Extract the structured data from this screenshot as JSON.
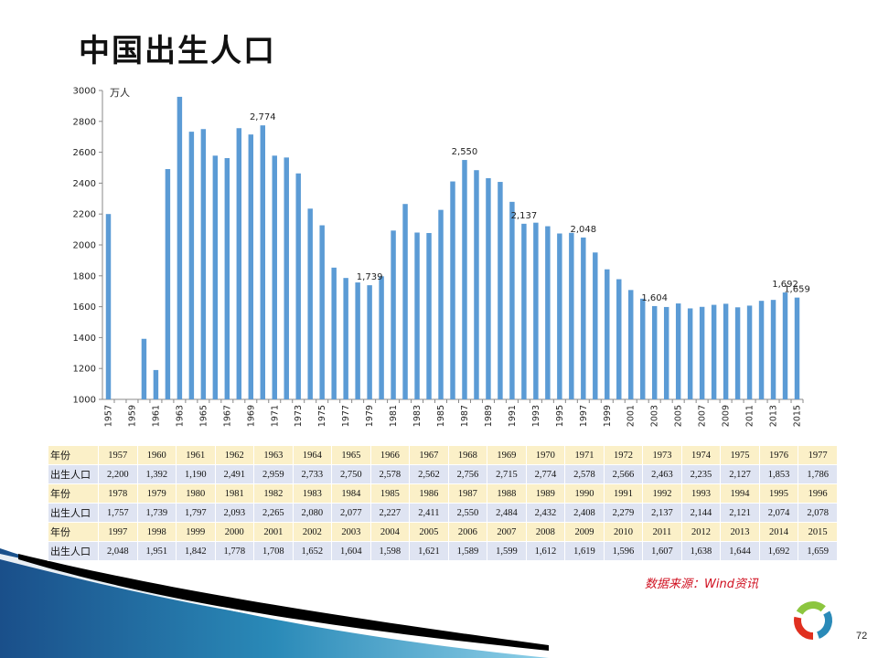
{
  "title": "中国出生人口",
  "unit_label": "万人",
  "source": "数据来源：Wind资讯",
  "page_number": "72",
  "table": {
    "year_header": "年份",
    "pop_header": "出生人口",
    "rows": [
      {
        "years": [
          "1957",
          "1960",
          "1961",
          "1962",
          "1963",
          "1964",
          "1965",
          "1966",
          "1967",
          "1968",
          "1969",
          "1970",
          "1971",
          "1972",
          "1973",
          "1974",
          "1975",
          "1976",
          "1977"
        ],
        "values": [
          "2,200",
          "1,392",
          "1,190",
          "2,491",
          "2,959",
          "2,733",
          "2,750",
          "2,578",
          "2,562",
          "2,756",
          "2,715",
          "2,774",
          "2,578",
          "2,566",
          "2,463",
          "2,235",
          "2,127",
          "1,853",
          "1,786"
        ]
      },
      {
        "years": [
          "1978",
          "1979",
          "1980",
          "1981",
          "1982",
          "1983",
          "1984",
          "1985",
          "1986",
          "1987",
          "1988",
          "1989",
          "1990",
          "1991",
          "1992",
          "1993",
          "1994",
          "1995",
          "1996"
        ],
        "values": [
          "1,757",
          "1,739",
          "1,797",
          "2,093",
          "2,265",
          "2,080",
          "2,077",
          "2,227",
          "2,411",
          "2,550",
          "2,484",
          "2,432",
          "2,408",
          "2,279",
          "2,137",
          "2,144",
          "2,121",
          "2,074",
          "2,078"
        ]
      },
      {
        "years": [
          "1997",
          "1998",
          "1999",
          "2000",
          "2001",
          "2002",
          "2003",
          "2004",
          "2005",
          "2006",
          "2007",
          "2008",
          "2009",
          "2010",
          "2011",
          "2012",
          "2013",
          "2014",
          "2015"
        ],
        "values": [
          "2,048",
          "1,951",
          "1,842",
          "1,778",
          "1,708",
          "1,652",
          "1,604",
          "1,598",
          "1,621",
          "1,589",
          "1,599",
          "1,612",
          "1,619",
          "1,596",
          "1,607",
          "1,638",
          "1,644",
          "1,692",
          "1,659"
        ]
      }
    ]
  },
  "chart_data": {
    "type": "bar",
    "ylim": [
      1000,
      3000
    ],
    "yticks": [
      1000,
      1200,
      1400,
      1600,
      1800,
      2000,
      2200,
      2400,
      2600,
      2800,
      3000
    ],
    "ylabel": "万人",
    "grid": false,
    "bar_color": "#5b9bd5",
    "categories": [
      "1957",
      "1958",
      "1959",
      "1960",
      "1961",
      "1962",
      "1963",
      "1964",
      "1965",
      "1966",
      "1967",
      "1968",
      "1969",
      "1970",
      "1971",
      "1972",
      "1973",
      "1974",
      "1975",
      "1976",
      "1977",
      "1978",
      "1979",
      "1980",
      "1981",
      "1982",
      "1983",
      "1984",
      "1985",
      "1986",
      "1987",
      "1988",
      "1989",
      "1990",
      "1991",
      "1992",
      "1993",
      "1994",
      "1995",
      "1996",
      "1997",
      "1998",
      "1999",
      "2000",
      "2001",
      "2002",
      "2003",
      "2004",
      "2005",
      "2006",
      "2007",
      "2008",
      "2009",
      "2010",
      "2011",
      "2012",
      "2013",
      "2014",
      "2015"
    ],
    "values": [
      2200,
      null,
      null,
      1392,
      1190,
      2491,
      2959,
      2733,
      2750,
      2578,
      2562,
      2756,
      2715,
      2774,
      2578,
      2566,
      2463,
      2235,
      2127,
      1853,
      1786,
      1757,
      1739,
      1797,
      2093,
      2265,
      2080,
      2077,
      2227,
      2411,
      2550,
      2484,
      2432,
      2408,
      2279,
      2137,
      2144,
      2121,
      2074,
      2078,
      2048,
      1951,
      1842,
      1778,
      1708,
      1652,
      1604,
      1598,
      1621,
      1589,
      1599,
      1612,
      1619,
      1596,
      1607,
      1638,
      1644,
      1692,
      1659
    ],
    "xticks": [
      "1957",
      "1959",
      "1961",
      "1963",
      "1965",
      "1967",
      "1969",
      "1971",
      "1973",
      "1975",
      "1977",
      "1979",
      "1981",
      "1983",
      "1985",
      "1987",
      "1989",
      "1991",
      "1993",
      "1995",
      "1997",
      "1999",
      "2001",
      "2003",
      "2005",
      "2007",
      "2009",
      "2011",
      "2013",
      "2015"
    ],
    "annotations": [
      {
        "category": "1970",
        "label": "2,774"
      },
      {
        "category": "1979",
        "label": "1,739"
      },
      {
        "category": "1987",
        "label": "2,550"
      },
      {
        "category": "1992",
        "label": "2,137"
      },
      {
        "category": "1997",
        "label": "2,048"
      },
      {
        "category": "2003",
        "label": "1,604"
      },
      {
        "category": "2014",
        "label": "1,692"
      },
      {
        "category": "2015",
        "label": "1,659"
      }
    ]
  }
}
